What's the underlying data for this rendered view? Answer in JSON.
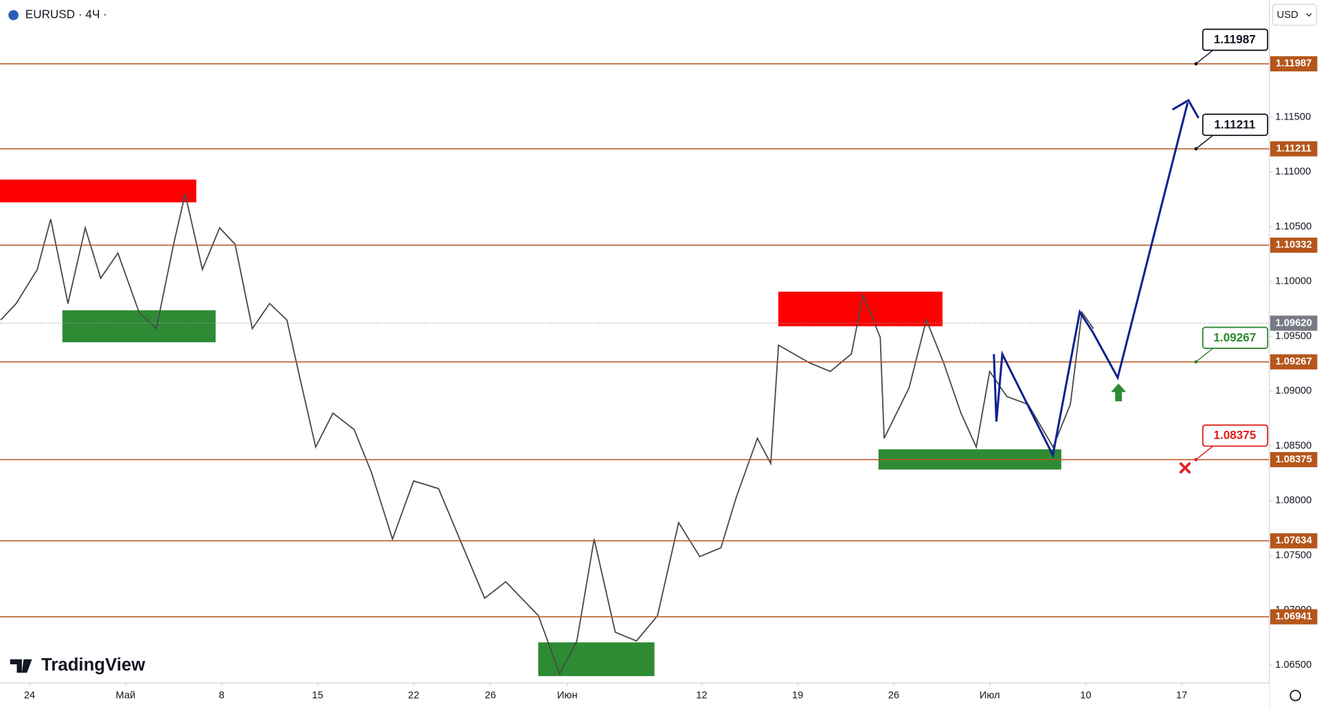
{
  "header": {
    "symbol": "EURUSD · 4Ч ·",
    "currency": "USD",
    "logo": "TradingView"
  },
  "chart_data": {
    "type": "line",
    "x": [
      -1.5,
      -0.7,
      0.4,
      1.1,
      2.0,
      2.9,
      3.7,
      4.6,
      5.7,
      6.6,
      7.5,
      8.1,
      9.0,
      9.9,
      10.7,
      11.6,
      12.5,
      13.4,
      14.0,
      14.9,
      15.8,
      16.9,
      17.8,
      18.9,
      20.0,
      21.3,
      22.4,
      23.7,
      24.8,
      26.5,
      27.6,
      28.5,
      29.4,
      30.5,
      31.6,
      32.7,
      33.8,
      34.9,
      36.0,
      36.8,
      37.9,
      38.6,
      39.0,
      40.6,
      41.7,
      42.8,
      43.4,
      44.3,
      44.5,
      45.8,
      46.7,
      47.6,
      48.5,
      49.3,
      50.0,
      50.9,
      52.0,
      53.3,
      54.2,
      54.8,
      55.4
    ],
    "values": [
      1.0965,
      1.098,
      1.1011,
      1.1057,
      1.098,
      1.1049,
      1.1003,
      1.1026,
      1.0972,
      1.0957,
      1.1034,
      1.108,
      1.1011,
      1.1049,
      1.1034,
      1.0957,
      1.098,
      1.0965,
      1.0918,
      1.0849,
      1.088,
      1.0865,
      1.0826,
      1.0765,
      1.0818,
      1.0811,
      1.0765,
      1.0711,
      1.0726,
      1.0695,
      1.0642,
      1.0672,
      1.0765,
      1.068,
      1.0672,
      1.0695,
      1.078,
      1.0749,
      1.0757,
      1.0803,
      1.0857,
      1.0834,
      1.0942,
      1.0926,
      1.0918,
      1.0934,
      1.0988,
      1.0949,
      1.0857,
      1.0903,
      1.0965,
      1.0926,
      1.088,
      1.0849,
      1.0918,
      1.0895,
      1.0888,
      1.0849,
      1.0888,
      1.0972,
      1.0957
    ],
    "color": "#4a4a4a",
    "xlim": [
      -1.54,
      64.56
    ],
    "xticks": [
      {
        "value": 0,
        "label": "24"
      },
      {
        "value": 5,
        "label": "Май"
      },
      {
        "value": 10,
        "label": "8"
      },
      {
        "value": 15,
        "label": "15"
      },
      {
        "value": 20,
        "label": "22"
      },
      {
        "value": 24,
        "label": "26"
      },
      {
        "value": 28,
        "label": "Июн"
      },
      {
        "value": 35,
        "label": "12"
      },
      {
        "value": 40,
        "label": "19"
      },
      {
        "value": 45,
        "label": "26"
      },
      {
        "value": 50,
        "label": "Июл"
      },
      {
        "value": 55,
        "label": "10"
      },
      {
        "value": 60,
        "label": "17"
      }
    ],
    "ylim": [
      1.06338,
      1.12569
    ],
    "yticks": [
      {
        "value": 1.065,
        "label": "1.06500"
      },
      {
        "value": 1.07,
        "label": "1.07000"
      },
      {
        "value": 1.075,
        "label": "1.07500"
      },
      {
        "value": 1.08,
        "label": "1.08000"
      },
      {
        "value": 1.085,
        "label": "1.08500"
      },
      {
        "value": 1.09,
        "label": "1.09000"
      },
      {
        "value": 1.095,
        "label": "1.09500"
      },
      {
        "value": 1.1,
        "label": "1.10000"
      },
      {
        "value": 1.105,
        "label": "1.10500"
      },
      {
        "value": 1.11,
        "label": "1.11000"
      },
      {
        "value": 1.115,
        "label": "1.11500"
      }
    ],
    "levels": [
      1.11987,
      1.11211,
      1.10332,
      1.09267,
      1.08375,
      1.07634,
      1.06941
    ],
    "level_color": "#b5571c",
    "last_price": {
      "value": 1.0962,
      "label": "1.09620"
    },
    "callouts": [
      {
        "value": 1.11987,
        "color": "#131722"
      },
      {
        "value": 1.11211,
        "color": "#131722"
      },
      {
        "value": 1.09267,
        "color": "#2e8b2e"
      },
      {
        "value": 1.08375,
        "color": "#e02020"
      }
    ]
  }
}
